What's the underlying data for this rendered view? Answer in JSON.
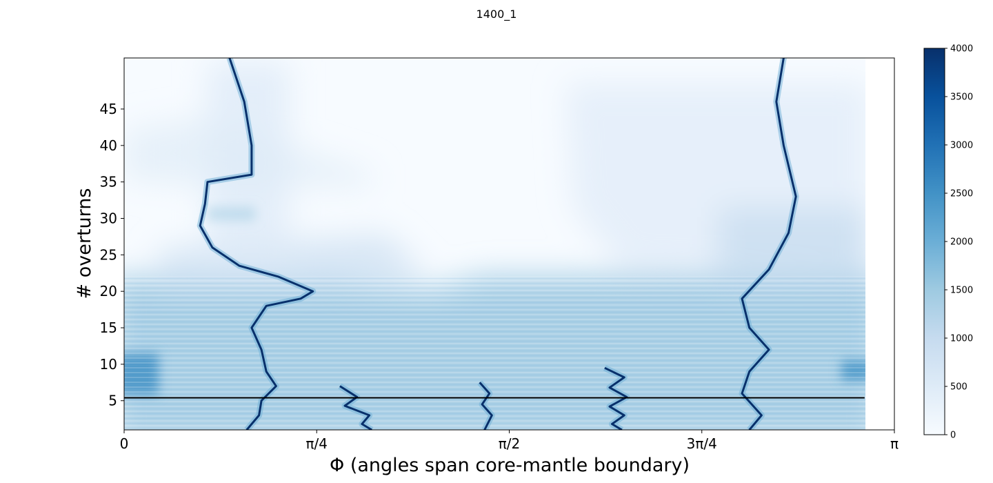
{
  "chart_data": {
    "type": "heatmap",
    "title": "1400_1",
    "xlabel": "Φ (angles span core-mantle boundary)",
    "ylabel": "# overturns",
    "xlim": [
      0,
      3.14159
    ],
    "ylim": [
      1,
      52
    ],
    "x_ticks": [
      {
        "value": 0,
        "label": "0"
      },
      {
        "value": 0.7854,
        "label": "π/4"
      },
      {
        "value": 1.5708,
        "label": "π/2"
      },
      {
        "value": 2.3562,
        "label": "3π/4"
      },
      {
        "value": 3.14159,
        "label": "π"
      }
    ],
    "y_ticks": [
      5,
      10,
      15,
      20,
      25,
      30,
      35,
      40,
      45
    ],
    "colormap": "Blues",
    "colorbar": {
      "min": 0,
      "max": 4000,
      "ticks": [
        0,
        500,
        1000,
        1500,
        2000,
        2500,
        3000,
        3500,
        4000
      ],
      "colors": [
        "#f7fbff",
        "#deebf7",
        "#c6dbef",
        "#9ecae1",
        "#6baed6",
        "#4292c6",
        "#2171b5",
        "#08519c",
        "#08306b"
      ]
    },
    "data_extent_x": [
      0,
      3.02
    ],
    "horizontal_line": {
      "y": 5.4,
      "x": [
        0,
        3.02
      ],
      "color": "#000000"
    },
    "ridges": [
      {
        "name": "ridge-left",
        "points": [
          [
            0.43,
            52
          ],
          [
            0.49,
            46
          ],
          [
            0.52,
            40
          ],
          [
            0.52,
            36
          ],
          [
            0.34,
            35
          ],
          [
            0.33,
            32
          ],
          [
            0.31,
            29
          ],
          [
            0.36,
            26
          ],
          [
            0.47,
            23.5
          ],
          [
            0.63,
            22
          ],
          [
            0.77,
            20
          ],
          [
            0.72,
            19
          ],
          [
            0.58,
            18
          ],
          [
            0.52,
            15
          ],
          [
            0.56,
            12
          ],
          [
            0.58,
            9
          ],
          [
            0.62,
            7
          ],
          [
            0.56,
            5
          ],
          [
            0.55,
            3
          ],
          [
            0.5,
            1
          ]
        ]
      },
      {
        "name": "ridge-mid-left",
        "points": [
          [
            0.88,
            7.0
          ],
          [
            0.95,
            5.5
          ],
          [
            0.9,
            4.3
          ],
          [
            1.0,
            3.0
          ],
          [
            0.97,
            1.8
          ],
          [
            1.01,
            1.0
          ]
        ]
      },
      {
        "name": "ridge-center",
        "points": [
          [
            1.45,
            7.5
          ],
          [
            1.49,
            6.0
          ],
          [
            1.46,
            4.5
          ],
          [
            1.5,
            3.0
          ],
          [
            1.47,
            1.0
          ]
        ]
      },
      {
        "name": "ridge-mid-right",
        "points": [
          [
            1.96,
            9.5
          ],
          [
            2.04,
            8.2
          ],
          [
            1.98,
            6.8
          ],
          [
            2.05,
            5.5
          ],
          [
            1.98,
            4.2
          ],
          [
            2.04,
            3.0
          ],
          [
            1.99,
            1.8
          ],
          [
            2.03,
            1.0
          ]
        ]
      },
      {
        "name": "ridge-right",
        "points": [
          [
            2.69,
            52
          ],
          [
            2.66,
            46
          ],
          [
            2.69,
            40
          ],
          [
            2.74,
            33
          ],
          [
            2.71,
            28
          ],
          [
            2.63,
            23
          ],
          [
            2.52,
            19
          ],
          [
            2.55,
            15
          ],
          [
            2.63,
            12
          ],
          [
            2.55,
            9
          ],
          [
            2.52,
            6
          ],
          [
            2.6,
            3
          ],
          [
            2.55,
            1
          ]
        ]
      }
    ]
  }
}
